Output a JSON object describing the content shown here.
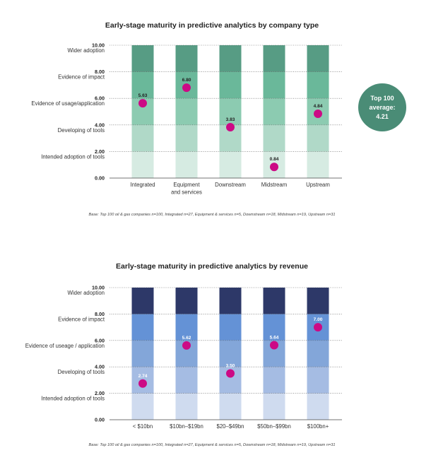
{
  "chart_data": [
    {
      "type": "bar",
      "title": "Early-stage maturity in predictive analytics by company type",
      "bands": [
        "Wider adoption",
        "Evidence of impact",
        "Evidence of usage/application",
        "Developing of tools",
        "Intended adoption of tools"
      ],
      "yticks": [
        "10.00",
        "8.00",
        "6.00",
        "4.00",
        "2.00",
        "0.00"
      ],
      "ylim": [
        0,
        10
      ],
      "categories": [
        [
          "Integrated"
        ],
        [
          "Equipment",
          "and services"
        ],
        [
          "Downstream"
        ],
        [
          "Midstream"
        ],
        [
          "Upstream"
        ]
      ],
      "values": [
        5.63,
        6.8,
        3.83,
        0.84,
        4.84
      ],
      "value_labels": [
        "5.63",
        "6.80",
        "3.83",
        "0.84",
        "4.84"
      ],
      "segment_colors": [
        "#d6ebe2",
        "#b0d9c8",
        "#8ccbb1",
        "#6ab89a",
        "#579c84"
      ],
      "point_color": "#cc0a85",
      "label_color": "#222222",
      "badge": {
        "lines": [
          "Top 100",
          "average:",
          "4.21"
        ],
        "value": 4.21,
        "color": "#4a8c76"
      },
      "base_note": "Base: Top 100 oil & gas companies n=100, Integrated n=27, Equipment & services n=5, Downstream n=18, Midstream n=19, Upstream n=31"
    },
    {
      "type": "bar",
      "title": "Early-stage maturity in predictive analytics by revenue",
      "bands": [
        "Wider adoption",
        "Evidence of impact",
        "Evidence of useage / application",
        "Developing of tools",
        "Intended adoption of tools"
      ],
      "yticks": [
        "10.00",
        "8.00",
        "6.00",
        "4.00",
        "2.00",
        "0.00"
      ],
      "ylim": [
        0,
        10
      ],
      "categories": [
        [
          "< $10bn"
        ],
        [
          "$10bn–$19bn"
        ],
        [
          "$20–$49bn"
        ],
        [
          "$50bn–$99bn"
        ],
        [
          "$100bn+"
        ]
      ],
      "values": [
        2.74,
        5.62,
        3.5,
        5.64,
        7.0
      ],
      "value_labels": [
        "2.74",
        "5.62",
        "3.50",
        "5.64",
        "7.00"
      ],
      "segment_colors": [
        "#cfdbef",
        "#a5bce3",
        "#83a6d9",
        "#6492d6",
        "#2d3868"
      ],
      "point_color": "#cc0a85",
      "label_color": "#ffffff",
      "base_note": "Base: Top 100 oil & gas companies n=100, Integrated n=27, Equipment & services n=5, Downstream n=18, Midstream n=19, Upstream n=31"
    }
  ]
}
